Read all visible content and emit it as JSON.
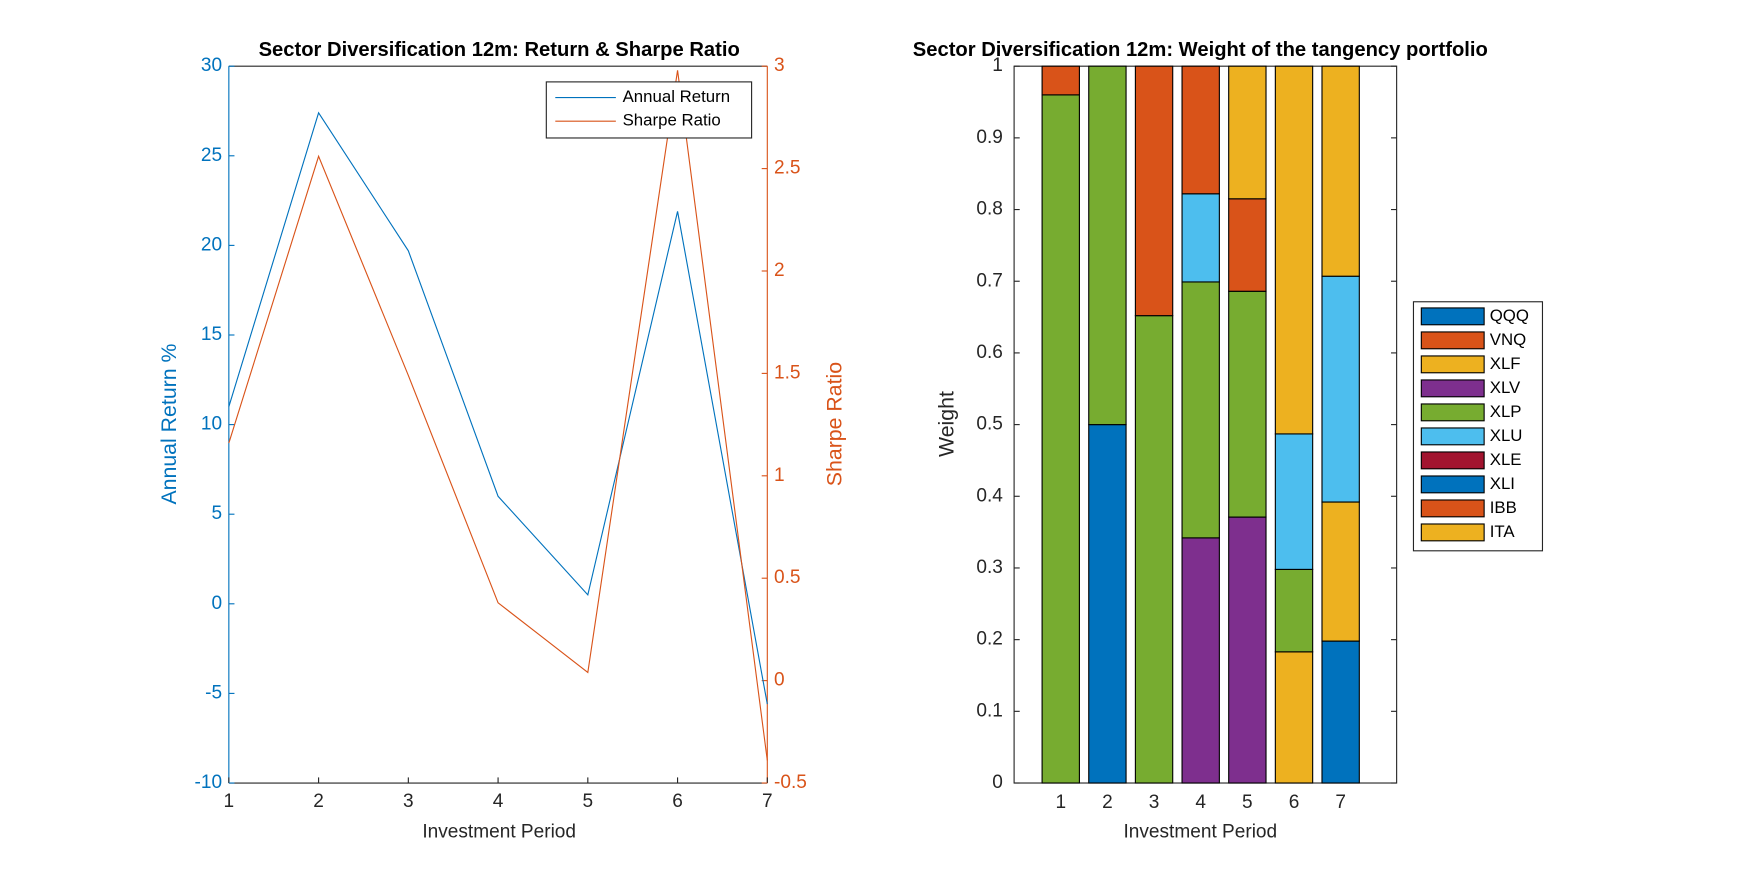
{
  "chart_data": [
    {
      "type": "line",
      "title": "Sector Diversification 12m: Return & Sharpe Ratio",
      "x_label": "Investment Period",
      "y_label": "Annual Return %",
      "y2_label": "Sharpe Ratio",
      "x": [
        1,
        2,
        3,
        4,
        5,
        6,
        7
      ],
      "xlim": [
        1,
        7
      ],
      "xticks": [
        1,
        2,
        3,
        4,
        5,
        6,
        7
      ],
      "ylim": [
        -10,
        30
      ],
      "yticks": [
        -10,
        -5,
        0,
        5,
        10,
        15,
        20,
        25,
        30
      ],
      "y2lim": [
        -0.5,
        3
      ],
      "y2ticks": [
        -0.5,
        0,
        0.5,
        1,
        1.5,
        2,
        2.5,
        3
      ],
      "legend": "upper right",
      "series": [
        {
          "name": "Annual Return",
          "color": "#0072BD",
          "values": [
            11.0,
            27.4,
            19.7,
            6.0,
            0.5,
            21.9,
            -5.6
          ]
        },
        {
          "name": "Sharpe Ratio",
          "color": "#D95319",
          "axis": "y2",
          "values": [
            1.16,
            2.56,
            1.49,
            0.38,
            0.04,
            2.98,
            -0.39
          ]
        }
      ]
    },
    {
      "type": "bar",
      "stacked": true,
      "title": "Sector Diversification 12m: Weight of the tangency portfolio",
      "x_label": "Investment Period",
      "y_label": "Weight",
      "categories": [
        "1",
        "2",
        "3",
        "4",
        "5",
        "6",
        "7"
      ],
      "ylim": [
        0,
        1
      ],
      "yticks": [
        0,
        0.1,
        0.2,
        0.3,
        0.4,
        0.5,
        0.6,
        0.7,
        0.8,
        0.9,
        1
      ],
      "legend": "right",
      "series": [
        {
          "name": "QQQ",
          "color": "#0072BD",
          "values": [
            0,
            0.5,
            0,
            0,
            0,
            0,
            0.198
          ]
        },
        {
          "name": "VNQ",
          "color": "#D95319",
          "values": [
            0,
            0,
            0,
            0,
            0,
            0,
            0
          ]
        },
        {
          "name": "XLF",
          "color": "#EDB120",
          "values": [
            0,
            0,
            0,
            0,
            0,
            0.183,
            0.194
          ]
        },
        {
          "name": "XLV",
          "color": "#7E2F8E",
          "values": [
            0,
            0,
            0,
            0.342,
            0.371,
            0,
            0
          ]
        },
        {
          "name": "XLP",
          "color": "#77AC30",
          "values": [
            0.96,
            0.5,
            0.652,
            0.357,
            0.315,
            0.115,
            0
          ]
        },
        {
          "name": "XLU",
          "color": "#4DBEEE",
          "values": [
            0,
            0,
            0,
            0.123,
            0,
            0.189,
            0.315
          ]
        },
        {
          "name": "XLE",
          "color": "#A2142F",
          "values": [
            0,
            0,
            0,
            0,
            0,
            0,
            0
          ]
        },
        {
          "name": "XLI",
          "color": "#0072BD",
          "values": [
            0,
            0,
            0,
            0,
            0,
            0,
            0
          ]
        },
        {
          "name": "IBB",
          "color": "#D95319",
          "values": [
            0.04,
            0,
            0.348,
            0.178,
            0.129,
            0,
            0
          ]
        },
        {
          "name": "ITA",
          "color": "#EDB120",
          "values": [
            0,
            0,
            0,
            0,
            0.185,
            0.513,
            0.293
          ]
        }
      ]
    }
  ]
}
